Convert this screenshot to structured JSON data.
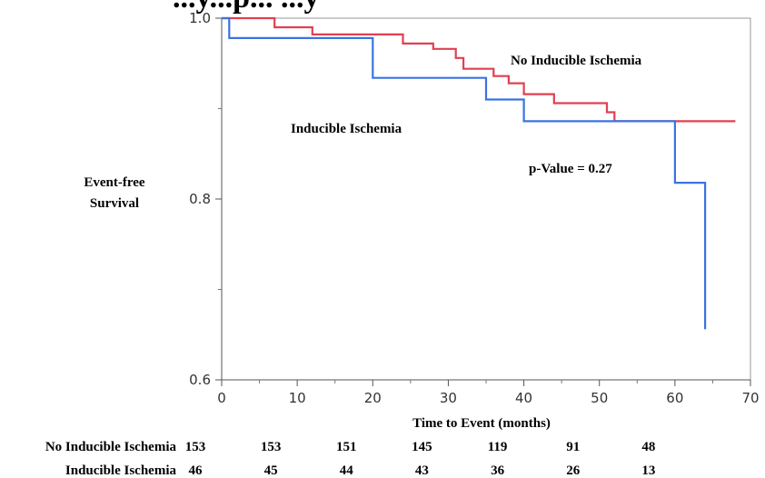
{
  "chart_data": {
    "type": "line",
    "title_fragment": "...y...p... ...y",
    "ylabel": [
      "Event-free",
      "Survival"
    ],
    "xlabel": "Time to Event (months)",
    "xlim": [
      0,
      70
    ],
    "ylim": [
      0.6,
      1.0
    ],
    "x_ticks": [
      "0",
      "10",
      "20",
      "30",
      "40",
      "50",
      "60",
      "70"
    ],
    "y_ticks": [
      "0.6",
      "0.8",
      "1.0"
    ],
    "grid": false,
    "step": true,
    "series": [
      {
        "name": "No Inducible Ischemia",
        "color": "#e04050",
        "points": [
          [
            0,
            1.0
          ],
          [
            7,
            1.0
          ],
          [
            7,
            0.99
          ],
          [
            12,
            0.99
          ],
          [
            12,
            0.982
          ],
          [
            24,
            0.982
          ],
          [
            24,
            0.972
          ],
          [
            28,
            0.972
          ],
          [
            28,
            0.966
          ],
          [
            31,
            0.966
          ],
          [
            31,
            0.956
          ],
          [
            32,
            0.956
          ],
          [
            32,
            0.944
          ],
          [
            36,
            0.944
          ],
          [
            36,
            0.936
          ],
          [
            38,
            0.936
          ],
          [
            38,
            0.928
          ],
          [
            40,
            0.928
          ],
          [
            40,
            0.916
          ],
          [
            44,
            0.916
          ],
          [
            44,
            0.906
          ],
          [
            51,
            0.906
          ],
          [
            51,
            0.896
          ],
          [
            52,
            0.896
          ],
          [
            52,
            0.886
          ],
          [
            68,
            0.886
          ]
        ]
      },
      {
        "name": "Inducible Ischemia",
        "color": "#3b73e0",
        "points": [
          [
            0,
            1.0
          ],
          [
            1,
            1.0
          ],
          [
            1,
            0.978
          ],
          [
            20,
            0.978
          ],
          [
            20,
            0.934
          ],
          [
            35,
            0.934
          ],
          [
            35,
            0.91
          ],
          [
            40,
            0.91
          ],
          [
            40,
            0.886
          ],
          [
            60,
            0.886
          ],
          [
            60,
            0.818
          ],
          [
            64,
            0.818
          ],
          [
            64,
            0.656
          ]
        ]
      }
    ],
    "annotations": {
      "no_ischemia": "No Inducible Ischemia",
      "ischemia": "Inducible Ischemia",
      "pvalue": "p-Value = 0.27"
    },
    "risk_table": {
      "rows": [
        {
          "label": "No Inducible Ischemia",
          "values": [
            "153",
            "153",
            "151",
            "145",
            "119",
            "91",
            "48"
          ]
        },
        {
          "label": "Inducible Ischemia",
          "values": [
            "46",
            "45",
            "44",
            "43",
            "36",
            "26",
            "13"
          ]
        }
      ]
    }
  }
}
